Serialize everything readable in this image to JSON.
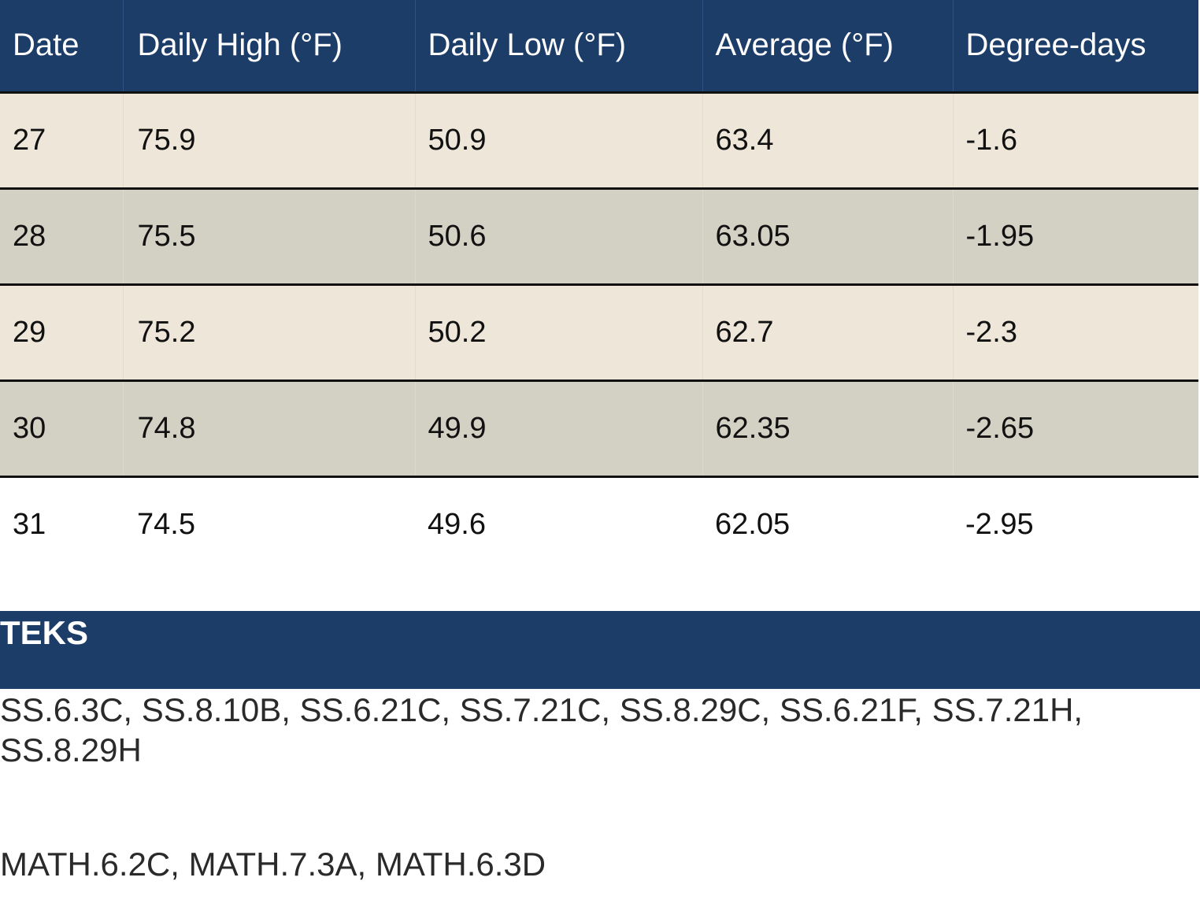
{
  "table": {
    "headers": [
      "Date",
      "Daily High (°F)",
      "Daily Low (°F)",
      "Average (°F)",
      "Degree-days"
    ],
    "rows": [
      [
        "27",
        "75.9",
        "50.9",
        "63.4",
        "-1.6"
      ],
      [
        "28",
        "75.5",
        "50.6",
        "63.05",
        "-1.95"
      ],
      [
        "29",
        "75.2",
        "50.2",
        "62.7",
        "-2.3"
      ],
      [
        "30",
        "74.8",
        "49.9",
        "62.35",
        "-2.65"
      ],
      [
        "31",
        "74.5",
        "49.6",
        "62.05",
        "-2.95"
      ]
    ]
  },
  "teks": {
    "heading": "TEKS",
    "social_studies": "SS.6.3C, SS.8.10B, SS.6.21C, SS.7.21C, SS.8.29C, SS.6.21F, SS.7.21H, SS.8.29H",
    "math": "MATH.6.2C, MATH.7.3A, MATH.6.3D"
  },
  "colors": {
    "header_background": "#1d3d69",
    "row_odd": "#ede6d9",
    "row_even": "#d3d0c4",
    "text": "#111111"
  }
}
